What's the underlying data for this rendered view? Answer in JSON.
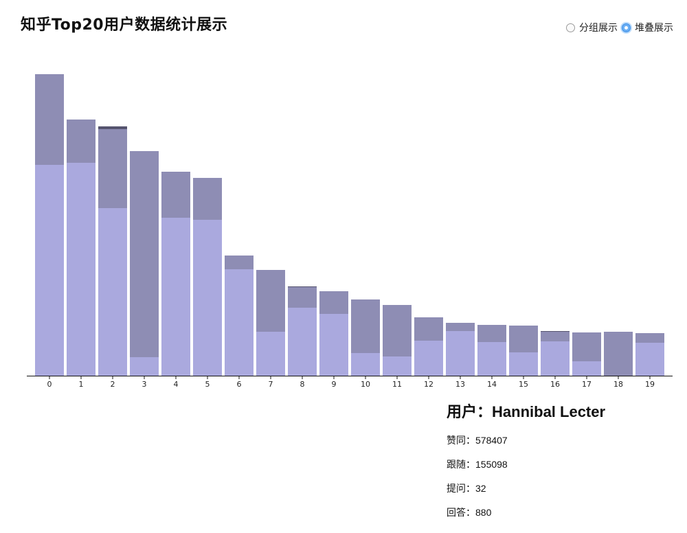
{
  "title": "知乎Top20用户数据统计展示",
  "mode_controls": {
    "grouped_label": "分组展示",
    "stacked_label": "堆叠展示",
    "selected": "stacked"
  },
  "colors": {
    "lower": "#aaa9de",
    "upper": "#8e8db4",
    "top": "#55536e",
    "axis": "#111111"
  },
  "chart_data": {
    "type": "bar",
    "stacked": true,
    "categories": [
      "0",
      "1",
      "2",
      "3",
      "4",
      "5",
      "6",
      "7",
      "8",
      "9",
      "10",
      "11",
      "12",
      "13",
      "14",
      "15",
      "16",
      "17",
      "18",
      "19"
    ],
    "series": [
      {
        "values": [
          307,
          310,
          244,
          27,
          230,
          227,
          155,
          64,
          99,
          90,
          33,
          28,
          51,
          65,
          49,
          34,
          50,
          21,
          0,
          48
        ]
      },
      {
        "values": [
          132,
          63,
          115,
          300,
          67,
          61,
          20,
          90,
          30,
          33,
          78,
          75,
          34,
          12,
          25,
          39,
          14,
          42,
          64,
          14
        ]
      },
      {
        "values": [
          0,
          0,
          4,
          0,
          0,
          0,
          0,
          0,
          1,
          0,
          0,
          0,
          0,
          0,
          0,
          0,
          1,
          0,
          0,
          0
        ]
      }
    ],
    "ylim": [
      0,
      440
    ]
  },
  "info": {
    "user_label": "用户：",
    "user_name": "Hannibal Lecter",
    "rows": [
      {
        "label": "赞同：",
        "value": "578407"
      },
      {
        "label": "跟随：",
        "value": "155098"
      },
      {
        "label": "提问：",
        "value": "32"
      },
      {
        "label": "回答：",
        "value": "880"
      }
    ]
  }
}
